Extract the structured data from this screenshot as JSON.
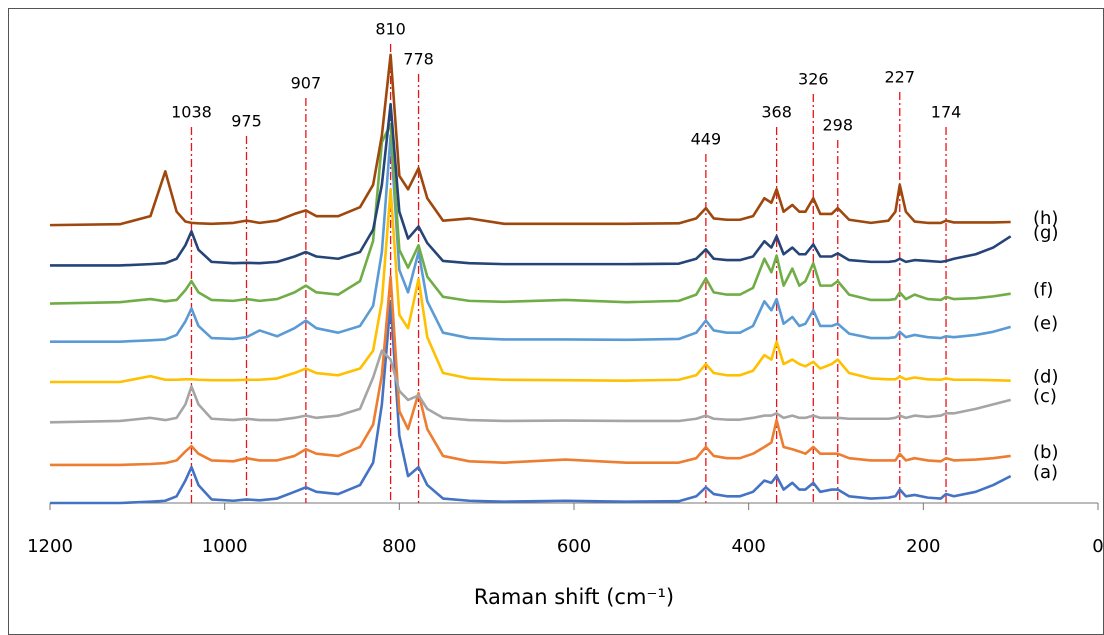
{
  "chart_data": {
    "type": "line",
    "xlabel": "Raman shift (cm⁻¹)",
    "xlim": [
      1200,
      0
    ],
    "xticks": [
      1200,
      1000,
      800,
      600,
      400,
      200,
      0
    ],
    "ylim": [
      0,
      110
    ],
    "peaks": [
      1038,
      975,
      907,
      810,
      778,
      449,
      368,
      326,
      298,
      227,
      174
    ],
    "peak_color": "#e8141b",
    "x": [
      1200,
      1120,
      1085,
      1068,
      1055,
      1045,
      1038,
      1030,
      1015,
      990,
      975,
      960,
      940,
      920,
      907,
      895,
      870,
      845,
      830,
      820,
      810,
      800,
      790,
      778,
      768,
      750,
      720,
      680,
      610,
      540,
      480,
      460,
      449,
      440,
      425,
      410,
      395,
      382,
      374,
      368,
      360,
      350,
      342,
      335,
      326,
      318,
      305,
      298,
      285,
      260,
      240,
      232,
      227,
      220,
      210,
      195,
      180,
      174,
      165,
      140,
      120,
      100
    ],
    "series": [
      {
        "name": "(a)",
        "color": "#4472c4",
        "values": [
          0,
          0,
          0.3,
          0.5,
          1.5,
          5,
          8,
          4,
          0.8,
          0.5,
          0.8,
          0.6,
          1,
          2.5,
          3.5,
          2.5,
          2,
          4,
          9,
          22,
          45,
          15,
          6,
          8,
          4,
          1,
          0.5,
          0.3,
          0.5,
          0.3,
          0.4,
          1.5,
          3.5,
          2,
          1.5,
          1.5,
          2.5,
          5,
          4.5,
          6,
          3,
          4.5,
          3,
          3,
          4.5,
          2.5,
          3,
          3,
          1.5,
          1,
          1.2,
          1.5,
          3,
          1.5,
          1.8,
          1.2,
          1,
          2,
          1.5,
          2.5,
          4,
          6
        ]
      },
      {
        "name": "(b)",
        "color": "#ed7d31",
        "values": [
          8.5,
          8.5,
          8.7,
          8.9,
          9.5,
          11.5,
          12.7,
          11,
          9.5,
          9.3,
          10,
          9.5,
          9.5,
          10.5,
          12,
          11,
          10.5,
          12.5,
          17.5,
          28.5,
          50.5,
          20.5,
          16.5,
          24.5,
          16.5,
          10.5,
          9.3,
          9,
          9.7,
          9,
          9,
          10,
          12.5,
          10.5,
          10,
          10,
          11,
          12.5,
          13.5,
          18.5,
          12.5,
          12,
          11.5,
          11,
          12.5,
          11,
          11,
          11,
          10,
          9.5,
          9.5,
          9.5,
          11,
          9.5,
          10,
          9.5,
          9.3,
          10,
          9.5,
          9.7,
          10,
          10.5
        ]
      },
      {
        "name": "(c)",
        "color": "#a5a5a5",
        "values": [
          18,
          18.3,
          19,
          18.5,
          19,
          22,
          26,
          22,
          18.8,
          18.5,
          18.8,
          18.5,
          18.5,
          19,
          19.5,
          19,
          19.5,
          21,
          28,
          34,
          32,
          25,
          23,
          24,
          21,
          19,
          18.5,
          18.3,
          18.4,
          18.3,
          18.3,
          18.8,
          19.5,
          18.8,
          18.6,
          18.6,
          19,
          19.5,
          19.5,
          20,
          19,
          19.5,
          19,
          19,
          19.5,
          19,
          19,
          19,
          18.8,
          18.8,
          18.8,
          19,
          19.5,
          19,
          19.5,
          19.2,
          19.5,
          20,
          20,
          21,
          22,
          23
        ]
      },
      {
        "name": "(d)",
        "color": "#ffc000",
        "values": [
          27,
          27,
          28.3,
          27.5,
          27.5,
          27.6,
          27.6,
          27.5,
          27.4,
          27.4,
          27.5,
          27.5,
          27.8,
          29,
          30,
          29,
          28.5,
          30,
          34,
          45,
          70,
          42,
          39,
          50,
          37,
          29,
          27.8,
          27.5,
          27.4,
          27.3,
          27.5,
          28.5,
          31,
          29,
          28.5,
          28.5,
          29.5,
          33,
          32,
          36,
          31,
          32,
          31,
          30.5,
          31.5,
          30,
          31,
          32,
          29,
          27.8,
          27.6,
          27.6,
          28.2,
          27.6,
          28,
          27.6,
          27.5,
          27.8,
          27.5,
          27.5,
          27.4,
          27.3
        ]
      },
      {
        "name": "(e)",
        "color": "#5b9bd5",
        "values": [
          36,
          36,
          36.3,
          36.5,
          37.5,
          40.5,
          43.4,
          39.5,
          36.8,
          36.6,
          37,
          38.5,
          37.2,
          39,
          40.7,
          39,
          38,
          39.5,
          44,
          56,
          82,
          52,
          47,
          56,
          45,
          38,
          36.8,
          36.5,
          36.5,
          36.4,
          36.6,
          38,
          40.7,
          38.5,
          38,
          38,
          39.5,
          45,
          43,
          45.5,
          40,
          41.5,
          39.5,
          40,
          43,
          39.5,
          39.5,
          40,
          37.8,
          36.8,
          36.8,
          37,
          38.2,
          37,
          37.5,
          37,
          36.8,
          37.2,
          37,
          37.5,
          38.2,
          39.3
        ]
      },
      {
        "name": "(f)",
        "color": "#70ad47",
        "values": [
          44.5,
          44.8,
          45.5,
          45,
          45.3,
          47.5,
          49.5,
          47,
          45.3,
          45.1,
          45.5,
          45.1,
          45.5,
          47,
          48.5,
          47,
          46.5,
          49.5,
          58.5,
          80.5,
          84.5,
          56.5,
          52.5,
          57.5,
          50.5,
          46,
          45.1,
          44.9,
          45.3,
          44.8,
          45.1,
          46.5,
          50.1,
          47,
          46.5,
          46.5,
          48,
          54.5,
          51.5,
          55.2,
          48.5,
          52.3,
          48.5,
          49.5,
          53.5,
          48.5,
          48.5,
          49.5,
          46.5,
          45.3,
          45.3,
          45.5,
          47,
          45.5,
          46.5,
          45.5,
          45.3,
          46,
          45.5,
          45.7,
          46.1,
          46.7
        ]
      },
      {
        "name": "(g)",
        "color": "#264478",
        "values": [
          53,
          53,
          53.3,
          53.5,
          54.5,
          57.5,
          60.6,
          56.5,
          53.8,
          53.5,
          53.6,
          53.5,
          53.8,
          55,
          56,
          55,
          54.5,
          56,
          61,
          71,
          89,
          65,
          59,
          61.7,
          58,
          54,
          53.5,
          53.3,
          53.3,
          53.3,
          53.4,
          54.5,
          56.6,
          54.5,
          54.2,
          54.2,
          55,
          58.4,
          57,
          59.5,
          55.5,
          57,
          55.5,
          55.5,
          57.7,
          55,
          55,
          55.7,
          54.2,
          53.8,
          53.8,
          54,
          54.5,
          53.8,
          54.2,
          54,
          53.8,
          54,
          54.5,
          55.5,
          57,
          59.5
        ]
      },
      {
        "name": "(h)",
        "color": "#9e480e",
        "values": [
          62,
          62.2,
          64,
          74,
          65,
          62.8,
          62.5,
          62.4,
          62.3,
          62.5,
          63,
          62.5,
          63,
          64.5,
          65.3,
          64,
          64,
          66,
          71,
          82,
          100,
          73,
          70,
          74.7,
          68,
          63,
          63.5,
          62.3,
          62.3,
          62.3,
          62.4,
          63.5,
          65.8,
          63.5,
          63.2,
          63.2,
          64,
          68,
          67,
          70,
          65,
          66.5,
          65,
          65,
          68,
          64.5,
          64.5,
          65.8,
          63.2,
          62.5,
          63,
          65,
          71,
          65,
          62.8,
          62.5,
          62.5,
          63,
          62.6,
          62.6,
          62.6,
          62.7
        ]
      }
    ]
  }
}
